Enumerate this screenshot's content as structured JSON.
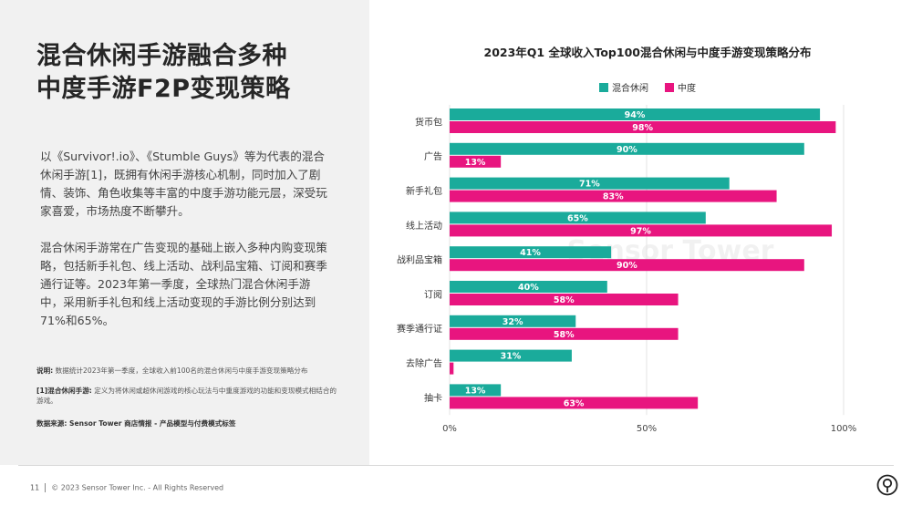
{
  "headline": {
    "line1": "混合休闲手游融合多种",
    "line2": "中度手游F2P变现策略"
  },
  "body": {
    "p1": "以《Survivor!.io》、《Stumble Guys》等为代表的混合休闲手游[1]，既拥有休闲手游核心机制，同时加入了剧情、装饰、角色收集等丰富的中度手游功能元层，深受玩家喜爱，市场热度不断攀升。",
    "p2": "混合休闲手游常在广告变现的基础上嵌入多种内购变现策略，包括新手礼包、线上活动、战利品宝箱、订阅和赛季通行证等。2023年第一季度，全球热门混合休闲手游中，采用新手礼包和线上活动变现的手游比例分别达到71%和65%。"
  },
  "notes": {
    "n1_label": "说明:",
    "n1_text": "数据统计2023年第一季度，全球收入前100名的混合休闲与中度手游变现策略分布",
    "n2_label": "[1]混合休闲手游:",
    "n2_text": "定义为将休闲或超休闲游戏的核心玩法与中重度游戏的功能和变现模式相结合的游戏。",
    "n3": "数据来源: Sensor Tower 商店情报 - 产品模型与付费模式标签"
  },
  "footer": {
    "page": "11",
    "copyright": "© 2023 Sensor Tower Inc. - All Rights Reserved"
  },
  "watermark": "Sensor Tower",
  "colors": {
    "series1": "#1aab9b",
    "series2": "#e8157f",
    "grid": "#e3e3e3"
  },
  "chart_data": {
    "type": "bar",
    "orientation": "horizontal",
    "title": "2023年Q1 全球收入Top100混合休闲与中度手游变现策略分布",
    "categories": [
      "货币包",
      "广告",
      "新手礼包",
      "线上活动",
      "战利品宝箱",
      "订阅",
      "赛季通行证",
      "去除广告",
      "抽卡"
    ],
    "series": [
      {
        "name": "混合休闲",
        "values": [
          94,
          90,
          71,
          65,
          41,
          40,
          32,
          31,
          13
        ]
      },
      {
        "name": "中度",
        "values": [
          98,
          13,
          83,
          97,
          90,
          58,
          58,
          1,
          63
        ]
      }
    ],
    "value_labels": {
      "混合休闲": [
        "94%",
        "90%",
        "71%",
        "65%",
        "41%",
        "40%",
        "32%",
        "31%",
        "13%"
      ],
      "中度": [
        "98%",
        "13%",
        "83%",
        "97%",
        "90%",
        "58%",
        "58%",
        "",
        "63%"
      ]
    },
    "xlim": [
      0,
      100
    ],
    "xticks": [
      0,
      50,
      100
    ],
    "xtick_labels": [
      "0%",
      "50%",
      "100%"
    ],
    "legend_position": "top",
    "grid": true
  }
}
